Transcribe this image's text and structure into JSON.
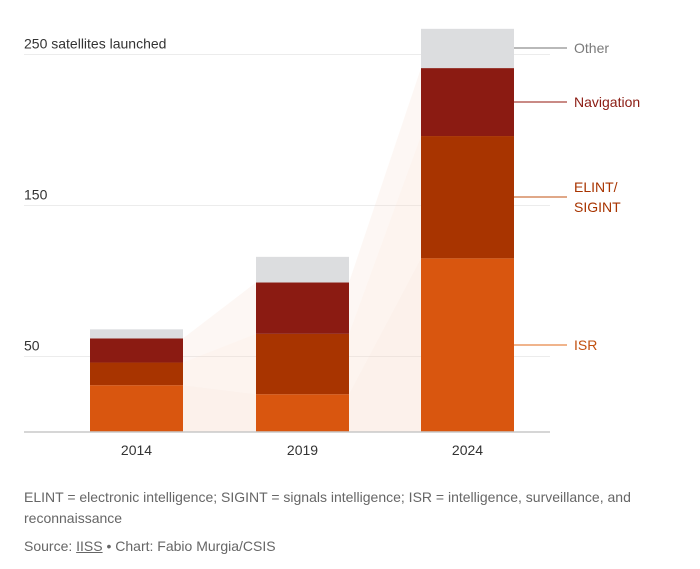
{
  "chart_data": {
    "type": "bar",
    "stacked": true,
    "title": "",
    "xlabel": "",
    "ylabel": "satellites launched",
    "ylim": [
      0,
      260
    ],
    "yticks": [
      {
        "value": 250,
        "label": "250 satellites launched"
      },
      {
        "value": 150,
        "label": "150"
      },
      {
        "value": 50,
        "label": "50"
      }
    ],
    "grid": true,
    "categories": [
      "2014",
      "2019",
      "2024"
    ],
    "series": [
      {
        "name": "ISR",
        "label": "ISR",
        "color": "#d9560f",
        "line_color": "#f0b48c",
        "text_color": "#c2500f",
        "values": [
          31,
          25,
          115
        ]
      },
      {
        "name": "ELINT/SIGINT",
        "label": [
          "ELINT/",
          "SIGINT"
        ],
        "color": "#a83400",
        "line_color": "#e0a888",
        "text_color": "#a83400",
        "values": [
          15,
          40,
          81
        ]
      },
      {
        "name": "Navigation",
        "label": [
          "Navigation"
        ],
        "color": "#8b1b12",
        "line_color": "#c98a85",
        "text_color": "#8b1b12",
        "values": [
          16,
          34,
          45
        ]
      },
      {
        "name": "Other",
        "label": [
          "Other"
        ],
        "color": "#dcdddf",
        "line_color": "#b9b9b9",
        "text_color": "#7a7a7a",
        "values": [
          6,
          17,
          26
        ]
      }
    ],
    "legend": "right-inline",
    "connector_color": "#f7d7c6"
  },
  "footer": {
    "note": "ELINT = electronic intelligence; SIGINT = signals intelligence; ISR = intelligence, surveillance, and reconnaissance",
    "source_prefix": "Source: ",
    "source_link": "IISS",
    "credit": " • Chart: Fabio Murgia/CSIS"
  }
}
